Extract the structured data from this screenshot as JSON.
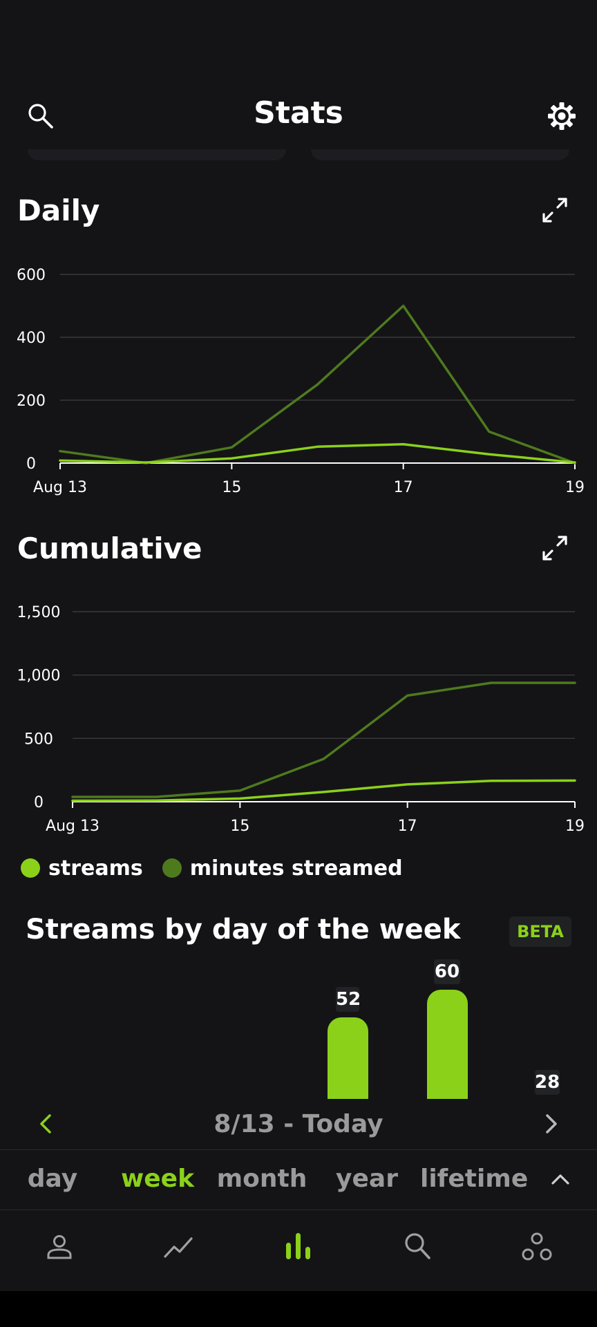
{
  "header": {
    "title": "Stats"
  },
  "daily": {
    "title": "Daily",
    "chart_data": {
      "type": "line",
      "x": [
        "Aug 13",
        "Aug 14",
        "Aug 15",
        "Aug 16",
        "Aug 17",
        "Aug 18",
        "Aug 19"
      ],
      "xtick_labels": [
        "Aug 13",
        "15",
        "17",
        "19"
      ],
      "ytick_labels": [
        "0",
        "200",
        "400",
        "600"
      ],
      "ylim": [
        0,
        600
      ],
      "grid": true,
      "series": [
        {
          "name": "minutes streamed",
          "color": "#4e7a1e",
          "values": [
            38,
            0,
            50,
            250,
            500,
            100,
            0
          ]
        },
        {
          "name": "streams",
          "color": "#8bd11a",
          "values": [
            8,
            2,
            15,
            52,
            60,
            28,
            2
          ]
        }
      ]
    }
  },
  "cumulative": {
    "title": "Cumulative",
    "chart_data": {
      "type": "line",
      "x": [
        "Aug 13",
        "Aug 14",
        "Aug 15",
        "Aug 16",
        "Aug 17",
        "Aug 18",
        "Aug 19"
      ],
      "xtick_labels": [
        "Aug 13",
        "15",
        "17",
        "19"
      ],
      "ytick_labels": [
        "0",
        "500",
        "1,000",
        "1,500"
      ],
      "ylim": [
        0,
        1500
      ],
      "grid": true,
      "series": [
        {
          "name": "minutes streamed",
          "color": "#4e7a1e",
          "values": [
            38,
            38,
            88,
            338,
            838,
            938,
            938
          ]
        },
        {
          "name": "streams",
          "color": "#8bd11a",
          "values": [
            8,
            10,
            25,
            77,
            137,
            165,
            167
          ]
        }
      ]
    }
  },
  "legend": {
    "items": [
      {
        "label": "streams",
        "color": "#8bd11a"
      },
      {
        "label": "minutes streamed",
        "color": "#4e7a1e"
      }
    ]
  },
  "dow": {
    "title": "Streams by day of the week",
    "badge": "BETA",
    "chart_data": {
      "type": "bar",
      "values_shown": [
        52,
        60,
        28
      ],
      "value_labels": [
        "52",
        "60",
        "28"
      ],
      "ylim": [
        0,
        60
      ]
    }
  },
  "period": {
    "label": "8/13 - Today"
  },
  "range_tabs": [
    {
      "label": "day",
      "active": false
    },
    {
      "label": "week",
      "active": true
    },
    {
      "label": "month",
      "active": false
    },
    {
      "label": "year",
      "active": false
    },
    {
      "label": "lifetime",
      "active": false
    }
  ],
  "nav": {
    "items": [
      {
        "icon": "profile-icon",
        "active": false
      },
      {
        "icon": "trend-icon",
        "active": false
      },
      {
        "icon": "stats-icon",
        "active": true
      },
      {
        "icon": "search-icon",
        "active": false
      },
      {
        "icon": "social-icon",
        "active": false
      }
    ]
  },
  "colors": {
    "accent": "#8bd11a",
    "secondary": "#4e7a1e",
    "background": "#141416"
  }
}
